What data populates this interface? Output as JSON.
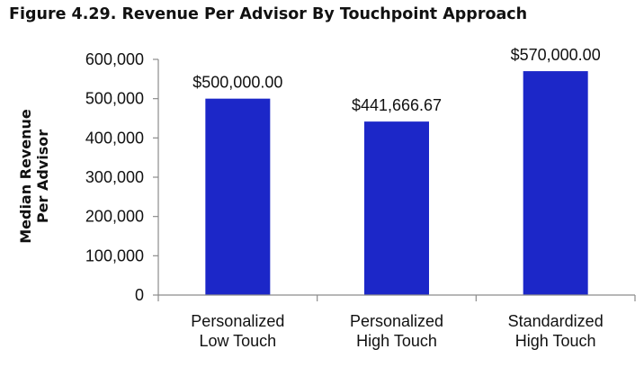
{
  "figure": {
    "title": "Figure 4.29. Revenue Per Advisor By Touchpoint Approach"
  },
  "chart_data": {
    "type": "bar",
    "categories": [
      [
        "Personalized",
        "Low Touch"
      ],
      [
        "Personalized",
        "High Touch"
      ],
      [
        "Standardized",
        "High Touch"
      ]
    ],
    "values": [
      500000,
      441666.67,
      570000
    ],
    "data_labels": [
      "$500,000.00",
      "$441,666.67",
      "$570,000.00"
    ],
    "ylabel": [
      "Median Revenue",
      "Per Advisor"
    ],
    "xlabel": "",
    "ylim": [
      0,
      600000
    ],
    "yticks": [
      0,
      100000,
      200000,
      300000,
      400000,
      500000,
      600000
    ],
    "ytick_labels": [
      "0",
      "100,000",
      "200,000",
      "300,000",
      "400,000",
      "500,000",
      "600,000"
    ],
    "grid": false,
    "legend": "none",
    "bar_color": "#1c27c8",
    "axis_color": "#8c8c8c"
  }
}
